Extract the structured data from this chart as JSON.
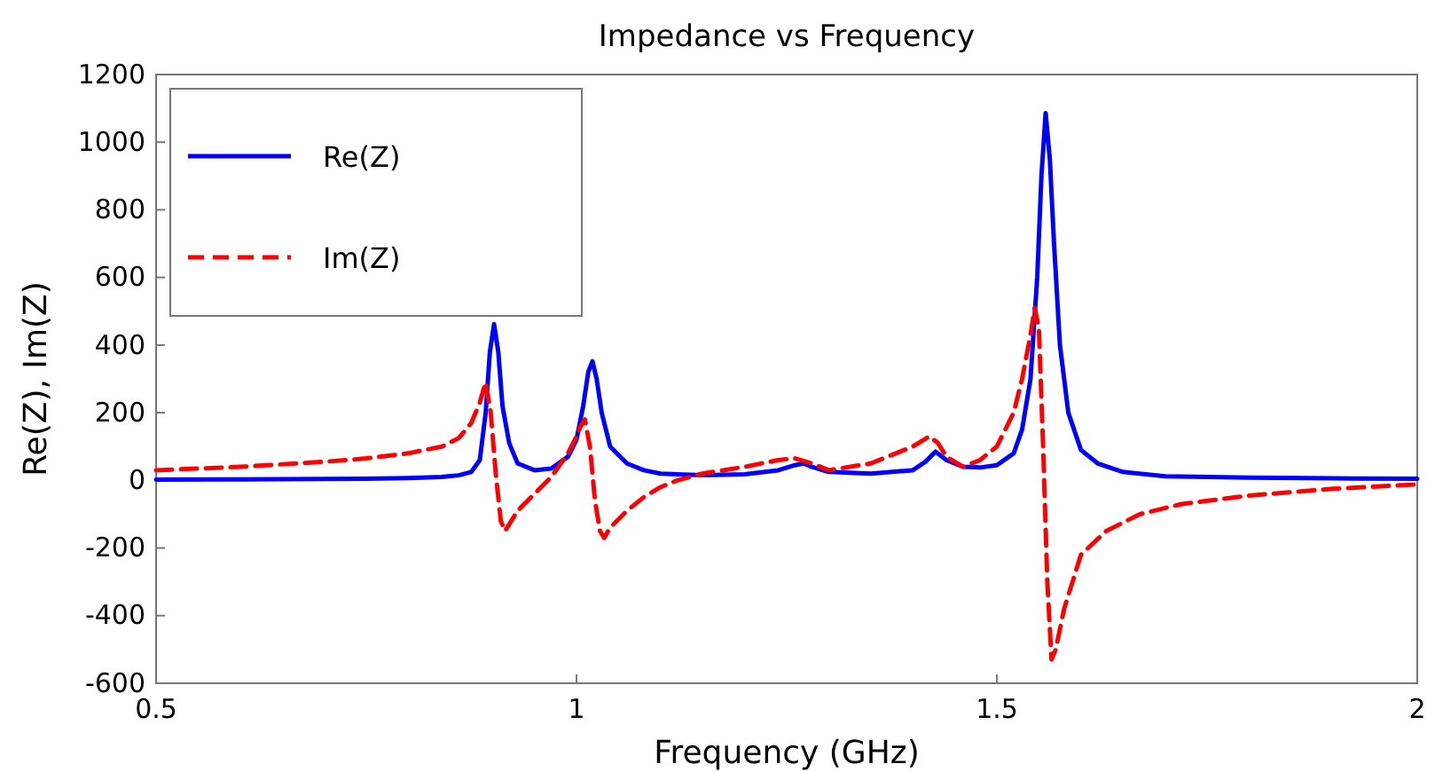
{
  "chart_data": {
    "type": "line",
    "title": "Impedance vs Frequency",
    "xlabel": "Frequency (GHz)",
    "ylabel": "Re(Z), Im(Z)",
    "xlim": [
      0.5,
      2
    ],
    "xticks": [
      0.5,
      1,
      1.5,
      2
    ],
    "ylim": [
      -600,
      1200
    ],
    "yticks": [
      -600,
      -400,
      -200,
      0,
      200,
      400,
      600,
      800,
      1000,
      1200
    ],
    "grid": false,
    "legend": "top left",
    "series": [
      {
        "name": "Re(Z)",
        "color": "#0000ff",
        "line_style": "solid",
        "x": [
          0.5,
          0.6,
          0.7,
          0.75,
          0.8,
          0.84,
          0.86,
          0.875,
          0.885,
          0.892,
          0.897,
          0.902,
          0.907,
          0.912,
          0.92,
          0.93,
          0.95,
          0.97,
          0.99,
          1.0,
          1.008,
          1.014,
          1.019,
          1.024,
          1.03,
          1.04,
          1.06,
          1.08,
          1.1,
          1.15,
          1.2,
          1.24,
          1.26,
          1.27,
          1.28,
          1.3,
          1.35,
          1.4,
          1.415,
          1.427,
          1.44,
          1.46,
          1.48,
          1.5,
          1.52,
          1.53,
          1.54,
          1.548,
          1.553,
          1.558,
          1.563,
          1.568,
          1.575,
          1.585,
          1.6,
          1.62,
          1.65,
          1.7,
          1.8,
          1.9,
          2.0
        ],
        "values": [
          2,
          3,
          4,
          5,
          7,
          10,
          15,
          25,
          60,
          200,
          380,
          462,
          380,
          220,
          110,
          50,
          30,
          35,
          70,
          120,
          220,
          320,
          352,
          300,
          200,
          100,
          50,
          30,
          20,
          15,
          18,
          30,
          45,
          50,
          40,
          25,
          20,
          30,
          55,
          85,
          60,
          40,
          38,
          45,
          80,
          150,
          300,
          600,
          900,
          1086,
          950,
          700,
          400,
          200,
          90,
          50,
          25,
          12,
          8,
          6,
          5
        ]
      },
      {
        "name": "Im(Z)",
        "color": "#ff0000",
        "line_style": "dashed",
        "x": [
          0.5,
          0.6,
          0.7,
          0.75,
          0.8,
          0.84,
          0.86,
          0.875,
          0.885,
          0.892,
          0.898,
          0.904,
          0.91,
          0.915,
          0.92,
          0.93,
          0.95,
          0.97,
          0.99,
          1.0,
          1.005,
          1.01,
          1.016,
          1.022,
          1.028,
          1.033,
          1.04,
          1.06,
          1.08,
          1.1,
          1.12,
          1.15,
          1.2,
          1.24,
          1.26,
          1.28,
          1.3,
          1.35,
          1.4,
          1.42,
          1.43,
          1.44,
          1.46,
          1.48,
          1.5,
          1.52,
          1.53,
          1.54,
          1.545,
          1.55,
          1.555,
          1.56,
          1.565,
          1.57,
          1.58,
          1.6,
          1.63,
          1.67,
          1.72,
          1.8,
          1.9,
          2.0
        ],
        "values": [
          30,
          40,
          55,
          65,
          80,
          100,
          125,
          170,
          230,
          290,
          200,
          20,
          -120,
          -150,
          -130,
          -90,
          -40,
          10,
          80,
          130,
          160,
          180,
          100,
          -60,
          -150,
          -170,
          -140,
          -90,
          -50,
          -20,
          0,
          20,
          40,
          60,
          65,
          50,
          30,
          50,
          100,
          130,
          110,
          70,
          40,
          60,
          100,
          200,
          300,
          430,
          510,
          450,
          100,
          -300,
          -530,
          -500,
          -380,
          -220,
          -150,
          -100,
          -70,
          -45,
          -25,
          -12
        ]
      }
    ]
  }
}
